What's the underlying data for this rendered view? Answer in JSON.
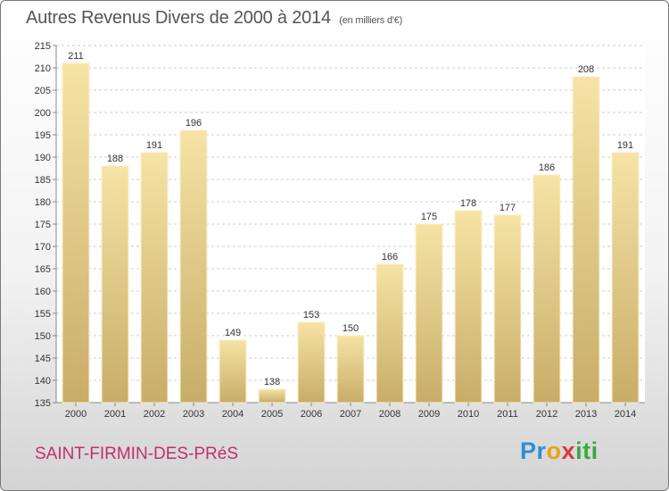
{
  "title": "Autres Revenus Divers de 2000 à 2014",
  "unit": "(en milliers d'€)",
  "commune": "SAINT-FIRMIN-DES-PRéS",
  "brand": {
    "letters": [
      {
        "char": "P",
        "color": "#2e8fd6"
      },
      {
        "char": "r",
        "color": "#2e8fd6"
      },
      {
        "char": "o",
        "color": "#e8a317"
      },
      {
        "char": "x",
        "color": "#d63a3a"
      },
      {
        "char": "i",
        "color": "#3aa843"
      },
      {
        "char": "t",
        "color": "#3aa843"
      },
      {
        "char": "i",
        "color": "#3aa843"
      }
    ]
  },
  "colors": {
    "bar_light": "#f6e3a5",
    "bar_dark": "#c8ad68",
    "grid": "#cccccc",
    "title": "#555555",
    "commune": "#c0306a"
  },
  "chart_data": {
    "type": "bar",
    "title": "Autres Revenus Divers de 2000 à 2014",
    "subtitle": "(en milliers d'€)",
    "xlabel": "",
    "ylabel": "",
    "categories": [
      "2000",
      "2001",
      "2002",
      "2003",
      "2004",
      "2005",
      "2006",
      "2007",
      "2008",
      "2009",
      "2010",
      "2011",
      "2012",
      "2013",
      "2014"
    ],
    "values": [
      211,
      188,
      191,
      196,
      149,
      138,
      153,
      150,
      166,
      175,
      178,
      177,
      186,
      208,
      191
    ],
    "ylim": [
      135,
      215
    ],
    "yticks": [
      135,
      140,
      145,
      150,
      155,
      160,
      165,
      170,
      175,
      180,
      185,
      190,
      195,
      200,
      205,
      210,
      215
    ],
    "grid": true,
    "data_labels": true
  }
}
